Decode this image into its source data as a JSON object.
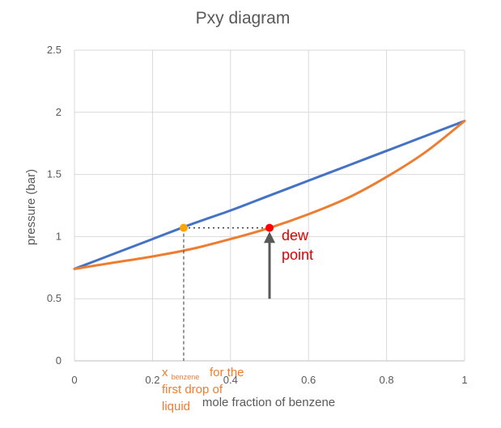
{
  "chart_data": {
    "type": "line",
    "title": "Pxy diagram",
    "xlabel": "mole fraction of benzene",
    "ylabel": "pressure (bar)",
    "xlim": [
      0,
      1
    ],
    "ylim": [
      0,
      2.5
    ],
    "x_ticks": [
      "0",
      "0.2",
      "0.4",
      "0.6",
      "0.8",
      "1"
    ],
    "y_ticks": [
      "0",
      "0.5",
      "1",
      "1.5",
      "2",
      "2.5"
    ],
    "grid": true,
    "series": [
      {
        "color": "#4472c4",
        "x": [
          0,
          0.1,
          0.2,
          0.3,
          0.4,
          0.5,
          0.6,
          0.7,
          0.8,
          0.9,
          1.0
        ],
        "y": [
          0.74,
          0.86,
          0.98,
          1.1,
          1.21,
          1.33,
          1.45,
          1.57,
          1.69,
          1.81,
          1.93
        ]
      },
      {
        "color": "#ed7d31",
        "x": [
          0,
          0.1,
          0.2,
          0.3,
          0.4,
          0.5,
          0.6,
          0.7,
          0.8,
          0.9,
          1.0
        ],
        "y": [
          0.74,
          0.79,
          0.84,
          0.9,
          0.98,
          1.07,
          1.18,
          1.31,
          1.48,
          1.68,
          1.93
        ]
      }
    ],
    "markers": [
      {
        "x": 0.28,
        "y": 1.07,
        "color": "#ffa500"
      },
      {
        "x": 0.5,
        "y": 1.07,
        "color": "#ff0000"
      }
    ],
    "annotations": {
      "dew_line1": "dew",
      "dew_line2": "point",
      "x_main": "x",
      "x_sub": "benzene",
      "x_suffix": "for the",
      "x_line2": "first drop of",
      "x_line3": "liquid"
    },
    "arrow": {
      "x": 0.5,
      "y_from": 0.5,
      "y_to": 1.04
    }
  }
}
